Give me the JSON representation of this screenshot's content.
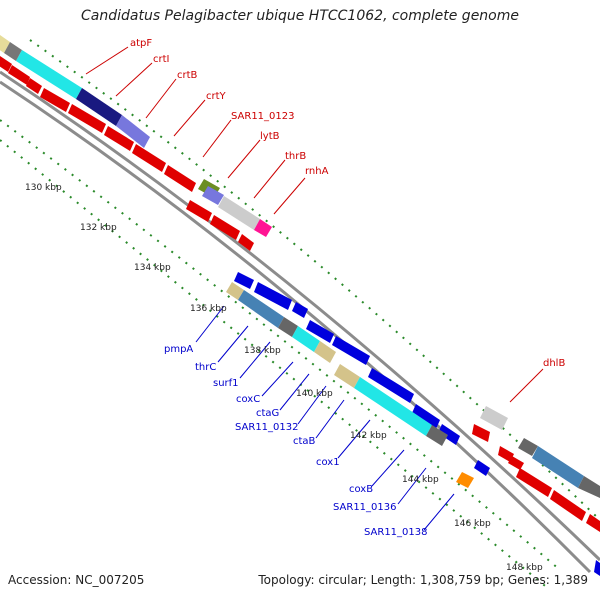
{
  "title": "Candidatus Pelagibacter ubique HTCC1062, complete genome",
  "footer": {
    "accession": "Accession: NC_007205",
    "topology": "Topology: circular; Length: 1,308,759 bp; Genes: 1,389"
  },
  "colors": {
    "backbone": "#8c8c8c",
    "gc_dots": "#2a8a2a",
    "forward_gene": "#e00000",
    "reverse_gene": "#0000dd",
    "label_forward": "#cc0000",
    "label_reverse": "#0000cc"
  },
  "kbp_labels": [
    "130 kbp",
    "132 kbp",
    "134 kbp",
    "136 kbp",
    "138 kbp",
    "140 kbp",
    "142 kbp",
    "144 kbp",
    "146 kbp",
    "148 kbp"
  ],
  "upper_gene_labels": [
    "atpF",
    "crtI",
    "crtB",
    "crtY",
    "SAR11_0123",
    "lytB",
    "thrB",
    "rnhA",
    "dhlB"
  ],
  "lower_gene_labels": [
    "pmpA",
    "thrC",
    "surf1",
    "coxC",
    "ctaG",
    "SAR11_0132",
    "ctaB",
    "cox1",
    "coxB",
    "SAR11_0136",
    "SAR11_0138"
  ]
}
